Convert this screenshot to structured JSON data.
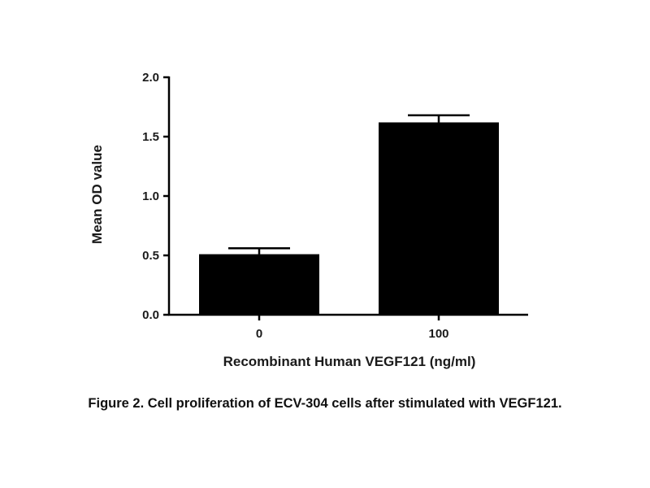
{
  "chart_data": {
    "type": "bar",
    "categories": [
      "0",
      "100"
    ],
    "values": [
      0.51,
      1.62
    ],
    "error_upper": [
      0.56,
      1.68
    ],
    "xlabel": "Recombinant Human VEGF121 (ng/ml)",
    "ylabel": "Mean OD value",
    "ylim": [
      0,
      2.0
    ],
    "yticks": [
      "0.0",
      "0.5",
      "1.0",
      "1.5",
      "2.0"
    ],
    "grid": false,
    "bar_color": "#000000"
  },
  "caption": "Figure 2. Cell proliferation of ECV-304 cells after stimulated with VEGF121."
}
